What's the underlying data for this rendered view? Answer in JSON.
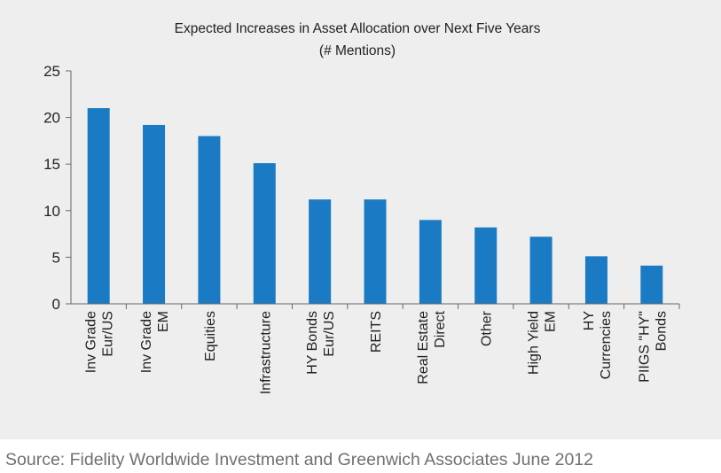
{
  "chart_data": {
    "type": "bar",
    "title": "Expected Increases in Asset Allocation over Next Five Years",
    "subtitle": "(# Mentions)",
    "xlabel": "",
    "ylabel": "",
    "ylim": [
      0,
      25
    ],
    "yticks": [
      "0",
      "5",
      "10",
      "15",
      "20",
      "25"
    ],
    "grid": false,
    "legend": "none",
    "bar_color": "#1a7bc4",
    "categories": [
      [
        "Inv Grade",
        "Eur/US"
      ],
      [
        "Inv Grade",
        "EM"
      ],
      [
        "Equities"
      ],
      [
        "Infrastructure"
      ],
      [
        "HY Bonds",
        "Eur/US"
      ],
      [
        "REITS"
      ],
      [
        "Real Estate",
        "Direct"
      ],
      [
        "Other"
      ],
      [
        "High Yield",
        "EM"
      ],
      [
        "HY",
        "Currencies"
      ],
      [
        "PIIGS \"HY\"",
        "Bonds"
      ]
    ],
    "values": [
      21,
      19.2,
      18,
      15.1,
      11.2,
      11.2,
      9,
      8.2,
      7.2,
      5.1,
      4.1
    ]
  },
  "source": "Source: Fidelity Worldwide Investment and Greenwich Associates June 2012"
}
